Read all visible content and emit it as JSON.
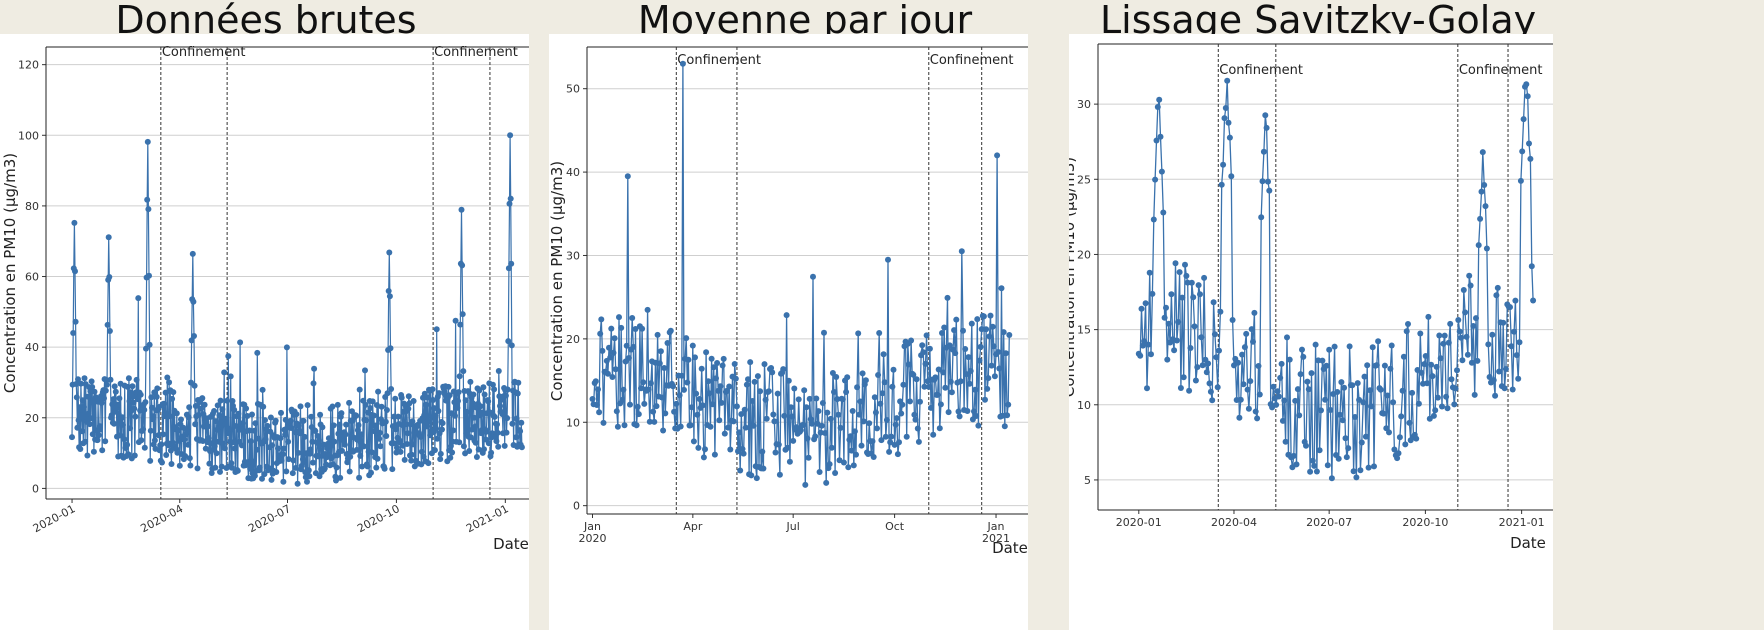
{
  "titles": [
    "Données brutes",
    "Moyenne par jour",
    "Lissage Savitzky-Golay"
  ],
  "series_color": "#3a72ad",
  "chart_data": [
    {
      "type": "scatter",
      "title": "Données brutes",
      "xlabel": "Date",
      "ylabel": "Concentration en PM10 (µg/m3)",
      "ylim": [
        -3,
        125
      ],
      "y_ticks": [
        0,
        20,
        40,
        60,
        80,
        100,
        120
      ],
      "x_ticks": [
        "2020-01",
        "2020-04",
        "2020-07",
        "2020-10",
        "2021-01"
      ],
      "grid": "horizontal",
      "annotations": [
        "Confinement",
        "Confinement"
      ],
      "peaks": [
        {
          "x": "2020-01-03",
          "y": 73
        },
        {
          "x": "2020-02-01",
          "y": 71
        },
        {
          "x": "2020-03-05",
          "y": 98
        },
        {
          "x": "2020-04-12",
          "y": 66
        },
        {
          "x": "2020-09-25",
          "y": 65
        },
        {
          "x": "2020-11-25",
          "y": 77
        },
        {
          "x": "2021-01-05",
          "y": 100
        }
      ]
    },
    {
      "type": "line",
      "title": "Moyenne par jour",
      "xlabel": "Date",
      "ylabel": "Concentration en PM10 (µg/m3)",
      "ylim": [
        -1,
        55
      ],
      "y_ticks": [
        0,
        10,
        20,
        30,
        40,
        50
      ],
      "x_ticks": [
        "Jan\n2020",
        "Apr",
        "Jul",
        "Oct",
        "Jan\n2021"
      ],
      "grid": "horizontal",
      "annotations": [
        "Confinement",
        "Confinement"
      ],
      "peaks": [
        {
          "x": "2020-02-02",
          "y": 39.5
        },
        {
          "x": "2020-03-23",
          "y": 53
        },
        {
          "x": "2020-09-25",
          "y": 29.5
        },
        {
          "x": "2020-12-01",
          "y": 30.5
        },
        {
          "x": "2021-01-02",
          "y": 42
        }
      ]
    },
    {
      "type": "line",
      "title": "Lissage Savitzky-Golay",
      "xlabel": "Date",
      "ylabel": "Concentration en PM10 (µg/m3)",
      "ylim": [
        3,
        34
      ],
      "y_ticks": [
        5,
        10,
        15,
        20,
        25,
        30
      ],
      "x_ticks": [
        "2020-01",
        "2020-04",
        "2020-07",
        "2020-10",
        "2021-01"
      ],
      "grid": "horizontal",
      "annotations": [
        "Confinement",
        "Confinement"
      ],
      "peaks": [
        {
          "x": "2020-01-20",
          "y": 30.2
        },
        {
          "x": "2020-03-25",
          "y": 32
        },
        {
          "x": "2020-05-01",
          "y": 29.4
        },
        {
          "x": "2020-11-25",
          "y": 27.4
        },
        {
          "x": "2021-01-05",
          "y": 32.8
        }
      ]
    }
  ]
}
